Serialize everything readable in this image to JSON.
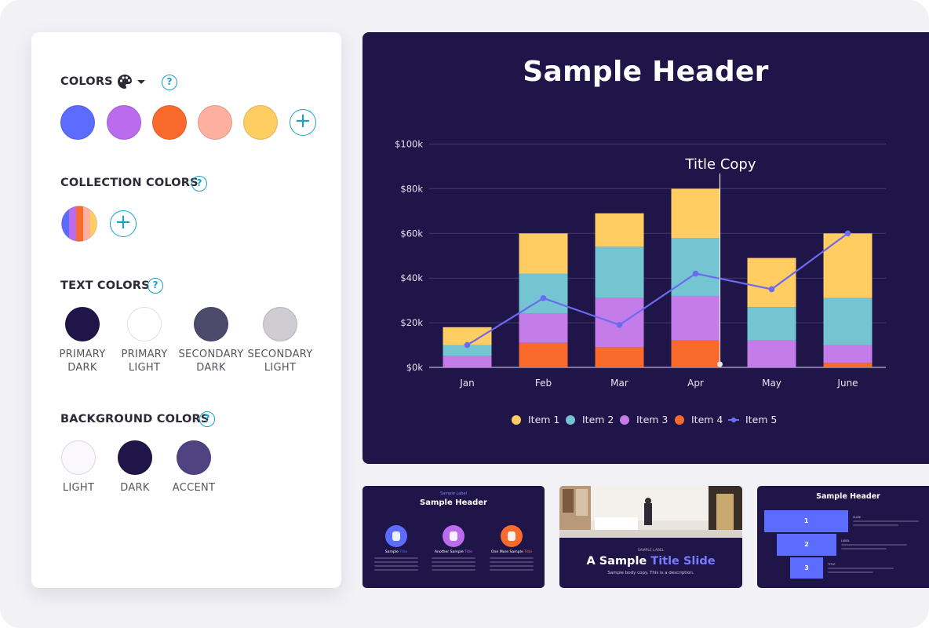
{
  "panel": {
    "colors": {
      "title": "COLORS",
      "help": "?",
      "swatches": [
        "#5b6cff",
        "#bb6bee",
        "#fb6a2d",
        "#fdb0a0",
        "#ffcd62"
      ],
      "add": "+"
    },
    "collection": {
      "title": "COLLECTION COLORS",
      "help": "?",
      "add": "+"
    },
    "text_colors": {
      "title": "TEXT COLORS",
      "help": "?",
      "items": [
        {
          "line1": "PRIMARY",
          "line2": "DARK",
          "color": "#1f1548"
        },
        {
          "line1": "PRIMARY",
          "line2": "LIGHT",
          "color": "#ffffff"
        },
        {
          "line1": "SECONDARY",
          "line2": "DARK",
          "color": "#4b4a6b"
        },
        {
          "line1": "SECONDARY",
          "line2": "LIGHT",
          "color": "#cfcdd2"
        }
      ]
    },
    "background_colors": {
      "title": "BACKGROUND COLORS",
      "help": "?",
      "items": [
        {
          "label": "LIGHT",
          "color": "#faf8fd"
        },
        {
          "label": "DARK",
          "color": "#1f1548"
        },
        {
          "label": "ACCENT",
          "color": "#504382"
        }
      ]
    }
  },
  "slide": {
    "title": "Sample Header",
    "annotation": "Title Copy"
  },
  "chart_data": {
    "type": "bar",
    "stacked": true,
    "categories": [
      "Jan",
      "Feb",
      "Mar",
      "Apr",
      "May",
      "June"
    ],
    "series": [
      {
        "name": "Item 4",
        "color": "#fb6a2d",
        "values": [
          0,
          11000,
          9000,
          12000,
          0,
          2000
        ]
      },
      {
        "name": "Item 3",
        "color": "#c47de8",
        "values": [
          5000,
          13000,
          22000,
          20000,
          12000,
          8000
        ]
      },
      {
        "name": "Item 2",
        "color": "#74c4d2",
        "values": [
          5000,
          18000,
          23000,
          26000,
          15000,
          21000
        ]
      },
      {
        "name": "Item 1",
        "color": "#ffcd62",
        "values": [
          8000,
          18000,
          15000,
          22000,
          22000,
          29000
        ]
      }
    ],
    "line_series": {
      "name": "Item 5",
      "color": "#6b6bf0",
      "values": [
        10000,
        31000,
        19000,
        42000,
        35000,
        60000
      ]
    },
    "legend_order": [
      "Item 1",
      "Item 2",
      "Item 3",
      "Item 4",
      "Item 5"
    ],
    "y_ticks": [
      "$0k",
      "$20k",
      "$40k",
      "$60k",
      "$80k",
      "$100k"
    ],
    "ylim": [
      0,
      100000
    ],
    "legend_position": "bottom",
    "grid": true
  },
  "thumbs": {
    "t1": {
      "label": "Sample Label",
      "title": "Sample Header",
      "items": [
        {
          "plain": "Sample ",
          "accent": "Title",
          "color": "#5b6cff"
        },
        {
          "plain": "Another Sample ",
          "accent": "Title",
          "color": "#bb6bee"
        },
        {
          "plain": "One More Sample ",
          "accent": "Title",
          "color": "#fb6a2d"
        }
      ]
    },
    "t2": {
      "label": "SAMPLE LABEL",
      "title_plain": "A Sample ",
      "title_accent": "Title Slide",
      "body": "Sample body copy. This is a description."
    },
    "t3": {
      "title": "Sample Header",
      "steps": [
        "1",
        "2",
        "3"
      ],
      "labels": [
        "SLIDE",
        "LABEL",
        "TITLE"
      ]
    }
  }
}
